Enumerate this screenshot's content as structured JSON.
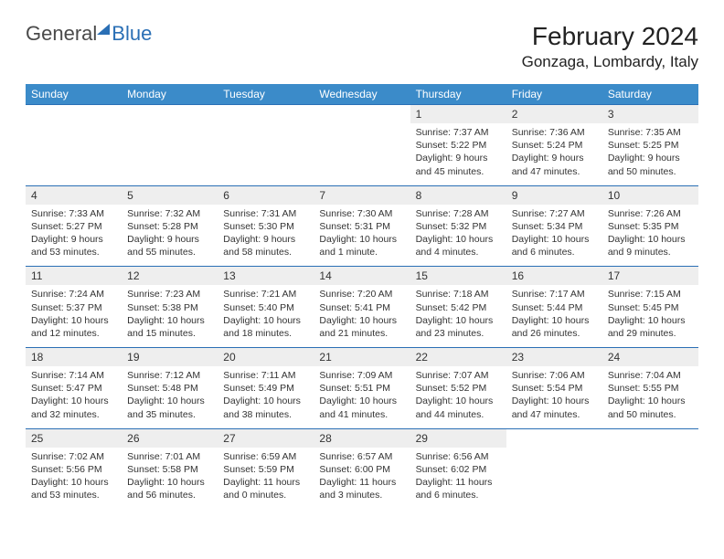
{
  "logo": {
    "text1": "General",
    "text2": "Blue"
  },
  "title": "February 2024",
  "location": "Gonzaga, Lombardy, Italy",
  "colors": {
    "header_bg": "#3b8bc9",
    "header_text": "#ffffff",
    "daynum_bg": "#eeeeee",
    "border": "#2a6fb5",
    "text": "#333333"
  },
  "dayNames": [
    "Sunday",
    "Monday",
    "Tuesday",
    "Wednesday",
    "Thursday",
    "Friday",
    "Saturday"
  ],
  "weeks": [
    [
      null,
      null,
      null,
      null,
      {
        "n": "1",
        "sr": "7:37 AM",
        "ss": "5:22 PM",
        "dl": "9 hours and 45 minutes."
      },
      {
        "n": "2",
        "sr": "7:36 AM",
        "ss": "5:24 PM",
        "dl": "9 hours and 47 minutes."
      },
      {
        "n": "3",
        "sr": "7:35 AM",
        "ss": "5:25 PM",
        "dl": "9 hours and 50 minutes."
      }
    ],
    [
      {
        "n": "4",
        "sr": "7:33 AM",
        "ss": "5:27 PM",
        "dl": "9 hours and 53 minutes."
      },
      {
        "n": "5",
        "sr": "7:32 AM",
        "ss": "5:28 PM",
        "dl": "9 hours and 55 minutes."
      },
      {
        "n": "6",
        "sr": "7:31 AM",
        "ss": "5:30 PM",
        "dl": "9 hours and 58 minutes."
      },
      {
        "n": "7",
        "sr": "7:30 AM",
        "ss": "5:31 PM",
        "dl": "10 hours and 1 minute."
      },
      {
        "n": "8",
        "sr": "7:28 AM",
        "ss": "5:32 PM",
        "dl": "10 hours and 4 minutes."
      },
      {
        "n": "9",
        "sr": "7:27 AM",
        "ss": "5:34 PM",
        "dl": "10 hours and 6 minutes."
      },
      {
        "n": "10",
        "sr": "7:26 AM",
        "ss": "5:35 PM",
        "dl": "10 hours and 9 minutes."
      }
    ],
    [
      {
        "n": "11",
        "sr": "7:24 AM",
        "ss": "5:37 PM",
        "dl": "10 hours and 12 minutes."
      },
      {
        "n": "12",
        "sr": "7:23 AM",
        "ss": "5:38 PM",
        "dl": "10 hours and 15 minutes."
      },
      {
        "n": "13",
        "sr": "7:21 AM",
        "ss": "5:40 PM",
        "dl": "10 hours and 18 minutes."
      },
      {
        "n": "14",
        "sr": "7:20 AM",
        "ss": "5:41 PM",
        "dl": "10 hours and 21 minutes."
      },
      {
        "n": "15",
        "sr": "7:18 AM",
        "ss": "5:42 PM",
        "dl": "10 hours and 23 minutes."
      },
      {
        "n": "16",
        "sr": "7:17 AM",
        "ss": "5:44 PM",
        "dl": "10 hours and 26 minutes."
      },
      {
        "n": "17",
        "sr": "7:15 AM",
        "ss": "5:45 PM",
        "dl": "10 hours and 29 minutes."
      }
    ],
    [
      {
        "n": "18",
        "sr": "7:14 AM",
        "ss": "5:47 PM",
        "dl": "10 hours and 32 minutes."
      },
      {
        "n": "19",
        "sr": "7:12 AM",
        "ss": "5:48 PM",
        "dl": "10 hours and 35 minutes."
      },
      {
        "n": "20",
        "sr": "7:11 AM",
        "ss": "5:49 PM",
        "dl": "10 hours and 38 minutes."
      },
      {
        "n": "21",
        "sr": "7:09 AM",
        "ss": "5:51 PM",
        "dl": "10 hours and 41 minutes."
      },
      {
        "n": "22",
        "sr": "7:07 AM",
        "ss": "5:52 PM",
        "dl": "10 hours and 44 minutes."
      },
      {
        "n": "23",
        "sr": "7:06 AM",
        "ss": "5:54 PM",
        "dl": "10 hours and 47 minutes."
      },
      {
        "n": "24",
        "sr": "7:04 AM",
        "ss": "5:55 PM",
        "dl": "10 hours and 50 minutes."
      }
    ],
    [
      {
        "n": "25",
        "sr": "7:02 AM",
        "ss": "5:56 PM",
        "dl": "10 hours and 53 minutes."
      },
      {
        "n": "26",
        "sr": "7:01 AM",
        "ss": "5:58 PM",
        "dl": "10 hours and 56 minutes."
      },
      {
        "n": "27",
        "sr": "6:59 AM",
        "ss": "5:59 PM",
        "dl": "11 hours and 0 minutes."
      },
      {
        "n": "28",
        "sr": "6:57 AM",
        "ss": "6:00 PM",
        "dl": "11 hours and 3 minutes."
      },
      {
        "n": "29",
        "sr": "6:56 AM",
        "ss": "6:02 PM",
        "dl": "11 hours and 6 minutes."
      },
      null,
      null
    ]
  ],
  "labels": {
    "sunrise": "Sunrise:",
    "sunset": "Sunset:",
    "daylight": "Daylight:"
  }
}
